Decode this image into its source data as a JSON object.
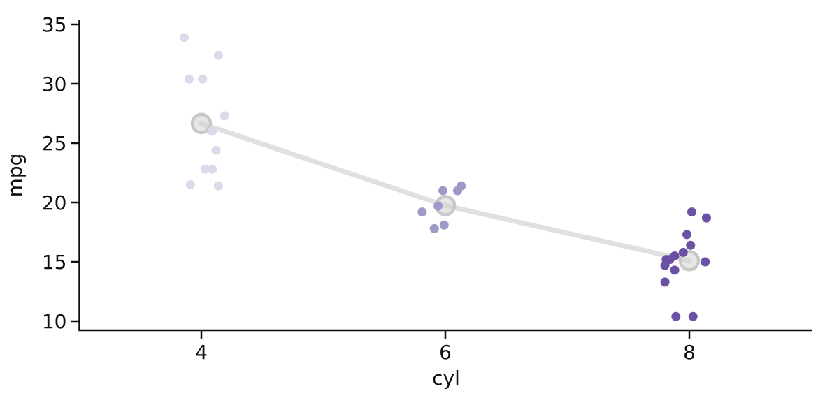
{
  "chart_data": {
    "type": "scatter",
    "title": "",
    "xlabel": "cyl",
    "ylabel": "mpg",
    "x_categories": [
      "4",
      "6",
      "8"
    ],
    "y_ticks": [
      10,
      15,
      20,
      25,
      30,
      35
    ],
    "ylim": [
      9.2,
      35.4
    ],
    "grid": false,
    "legend": "none",
    "point_series": [
      {
        "name": "cyl-4",
        "cyl": 4,
        "color": "#dadaeb",
        "mpg": [
          33.9,
          32.4,
          30.4,
          30.4,
          27.3,
          26.0,
          24.4,
          22.8,
          22.8,
          21.5,
          21.4
        ],
        "jitter": [
          -0.14,
          0.14,
          -0.1,
          0.01,
          0.19,
          0.09,
          0.12,
          0.03,
          0.09,
          -0.09,
          0.14
        ]
      },
      {
        "name": "cyl-6",
        "cyl": 6,
        "color": "#9e9ac8",
        "mpg": [
          21.0,
          21.0,
          21.4,
          19.7,
          19.2,
          18.1,
          17.8
        ],
        "jitter": [
          -0.02,
          0.1,
          0.13,
          -0.06,
          -0.19,
          -0.01,
          -0.09
        ]
      },
      {
        "name": "cyl-8",
        "cyl": 8,
        "color": "#6a51a3",
        "mpg": [
          19.2,
          18.7,
          17.3,
          16.4,
          15.8,
          15.5,
          15.2,
          15.2,
          15.0,
          14.7,
          14.3,
          13.3,
          10.4,
          10.4
        ],
        "jitter": [
          0.02,
          0.14,
          -0.02,
          0.01,
          -0.05,
          -0.12,
          -0.19,
          -0.16,
          0.13,
          -0.2,
          -0.12,
          -0.2,
          -0.11,
          0.03
        ]
      }
    ],
    "mean_line": {
      "x_categories": [
        "4",
        "6",
        "8"
      ],
      "means": [
        26.66,
        19.74,
        15.1
      ],
      "line_color": "#e0e0e0",
      "marker_edge_color": "#c8c8c8",
      "marker_fill_color": "rgba(206,206,206,0.5)"
    },
    "style": {
      "spine_color": "#0f0f0f",
      "tick_label_color": "#0f0f0f",
      "background": "#ffffff"
    }
  }
}
